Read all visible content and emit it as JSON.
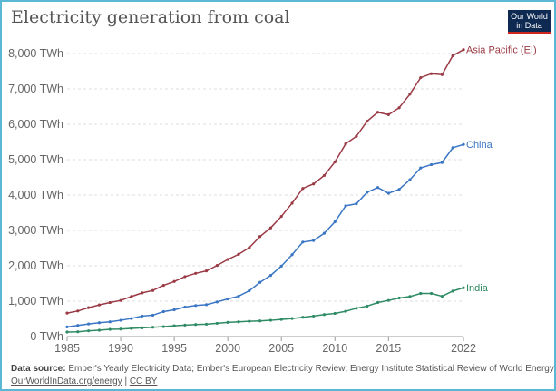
{
  "logo_text": "Our World in Data",
  "footer": {
    "source_label": "Data source:",
    "source_text": "Ember's Yearly Electricity Data; Ember's European Electricity Review; Energy Institute Statistical Review of World Energy",
    "link": "OurWorldInData.org/energy",
    "separator": "|",
    "license": "CC BY"
  },
  "chart_data": {
    "type": "line",
    "title": "Electricity generation from coal",
    "xlim": [
      1985,
      2022
    ],
    "ylim": [
      0,
      8000
    ],
    "grid": "horizontal dashed",
    "legend": "line-end labels",
    "y_ticks": [
      "0 TWh",
      "1,000 TWh",
      "2,000 TWh",
      "3,000 TWh",
      "4,000 TWh",
      "5,000 TWh",
      "6,000 TWh",
      "7,000 TWh",
      "8,000 TWh"
    ],
    "x_ticks": [
      "1985",
      "1990",
      "1995",
      "2000",
      "2005",
      "2010",
      "2015",
      "2022"
    ],
    "x": [
      1985,
      1986,
      1987,
      1988,
      1989,
      1990,
      1991,
      1992,
      1993,
      1994,
      1995,
      1996,
      1997,
      1998,
      1999,
      2000,
      2001,
      2002,
      2003,
      2004,
      2005,
      2006,
      2007,
      2008,
      2009,
      2010,
      2011,
      2012,
      2013,
      2014,
      2015,
      2016,
      2017,
      2018,
      2019,
      2020,
      2021,
      2022
    ],
    "series": [
      {
        "name": "Asia Pacific (EI)",
        "color": "#9a3a45",
        "values": [
          664,
          723,
          817,
          894,
          962,
          1021,
          1132,
          1234,
          1302,
          1447,
          1557,
          1694,
          1787,
          1855,
          2009,
          2179,
          2323,
          2511,
          2826,
          3072,
          3396,
          3770,
          4187,
          4315,
          4553,
          4936,
          5447,
          5660,
          6085,
          6340,
          6272,
          6468,
          6851,
          7319,
          7430,
          7404,
          7940,
          8110
        ]
      },
      {
        "name": "China",
        "color": "#3a76c4",
        "values": [
          272,
          315,
          357,
          391,
          417,
          460,
          511,
          579,
          604,
          706,
          757,
          834,
          877,
          902,
          979,
          1064,
          1140,
          1294,
          1532,
          1728,
          1991,
          2315,
          2672,
          2715,
          2919,
          3243,
          3694,
          3753,
          4077,
          4213,
          4051,
          4162,
          4434,
          4766,
          4860,
          4919,
          5336,
          5430
        ]
      },
      {
        "name": "India",
        "color": "#2e8b63",
        "values": [
          128,
          136,
          162,
          179,
          204,
          213,
          230,
          247,
          264,
          281,
          306,
          323,
          340,
          349,
          374,
          400,
          417,
          434,
          443,
          460,
          485,
          511,
          545,
          579,
          621,
          655,
          715,
          800,
          860,
          962,
          1021,
          1089,
          1132,
          1217,
          1217,
          1140,
          1285,
          1379
        ]
      }
    ]
  }
}
